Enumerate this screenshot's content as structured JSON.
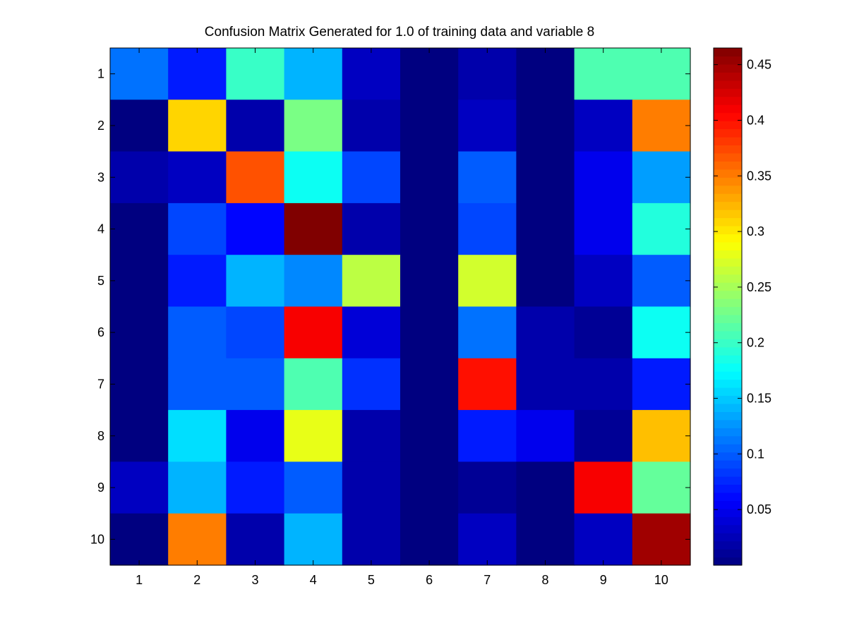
{
  "chart_data": {
    "type": "heatmap",
    "title": "Confusion Matrix Generated for 1.0 of training data and variable 8",
    "x_ticks": [
      "1",
      "2",
      "3",
      "4",
      "5",
      "6",
      "7",
      "8",
      "9",
      "10"
    ],
    "y_ticks": [
      "1",
      "2",
      "3",
      "4",
      "5",
      "6",
      "7",
      "8",
      "9",
      "10"
    ],
    "colormap": "jet",
    "color_range": [
      0.0,
      0.465
    ],
    "colorbar_ticks": [
      0.05,
      0.1,
      0.15,
      0.2,
      0.25,
      0.3,
      0.35,
      0.4,
      0.45
    ],
    "colorbar_tick_labels": [
      "0.05",
      "0.1",
      "0.15",
      "0.2",
      "0.25",
      "0.3",
      "0.35",
      "0.4",
      "0.45"
    ],
    "matrix": [
      [
        0.11,
        0.07,
        0.2,
        0.14,
        0.03,
        0.0,
        0.02,
        0.0,
        0.21,
        0.21
      ],
      [
        0.0,
        0.31,
        0.02,
        0.23,
        0.02,
        0.0,
        0.03,
        0.0,
        0.03,
        0.35
      ],
      [
        0.02,
        0.03,
        0.37,
        0.18,
        0.09,
        0.0,
        0.1,
        0.0,
        0.05,
        0.13
      ],
      [
        0.0,
        0.09,
        0.06,
        0.465,
        0.02,
        0.0,
        0.09,
        0.0,
        0.05,
        0.19
      ],
      [
        0.0,
        0.07,
        0.14,
        0.12,
        0.26,
        0.0,
        0.27,
        0.0,
        0.03,
        0.1
      ],
      [
        0.0,
        0.1,
        0.09,
        0.41,
        0.04,
        0.0,
        0.11,
        0.02,
        0.01,
        0.18
      ],
      [
        0.0,
        0.1,
        0.1,
        0.21,
        0.08,
        0.0,
        0.4,
        0.02,
        0.02,
        0.07
      ],
      [
        0.0,
        0.16,
        0.05,
        0.28,
        0.02,
        0.0,
        0.07,
        0.05,
        0.01,
        0.32
      ],
      [
        0.03,
        0.14,
        0.07,
        0.1,
        0.02,
        0.0,
        0.01,
        0.0,
        0.41,
        0.22
      ],
      [
        0.0,
        0.35,
        0.02,
        0.14,
        0.02,
        0.0,
        0.03,
        0.0,
        0.03,
        0.45
      ]
    ]
  }
}
